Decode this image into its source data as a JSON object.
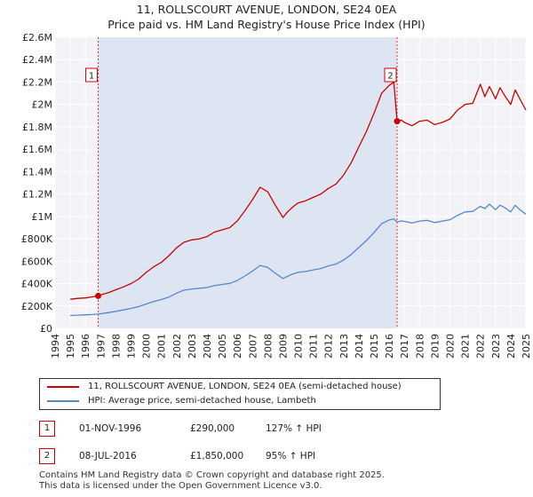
{
  "chart_data": {
    "type": "line",
    "title": "11, ROLLSCOURT AVENUE, LONDON, SE24 0EA",
    "subtitle": "Price paid vs. HM Land Registry's House Price Index (HPI)",
    "xlim": [
      1994,
      2025
    ],
    "ylim": [
      0,
      2600000
    ],
    "y_ticks": [
      0,
      200000,
      400000,
      600000,
      800000,
      1000000,
      1200000,
      1400000,
      1600000,
      1800000,
      2000000,
      2200000,
      2400000,
      2600000
    ],
    "y_tick_labels": [
      "£0",
      "£200K",
      "£400K",
      "£600K",
      "£800K",
      "£1M",
      "£1.2M",
      "£1.4M",
      "£1.6M",
      "£1.8M",
      "£2M",
      "£2.2M",
      "£2.4M",
      "£2.6M"
    ],
    "x_ticks": [
      1994,
      1995,
      1996,
      1997,
      1998,
      1999,
      2000,
      2001,
      2002,
      2003,
      2004,
      2005,
      2006,
      2007,
      2008,
      2009,
      2010,
      2011,
      2012,
      2013,
      2014,
      2015,
      2016,
      2017,
      2018,
      2019,
      2020,
      2021,
      2022,
      2023,
      2024,
      2025
    ],
    "x_tick_labels": [
      "1994",
      "1995",
      "1996",
      "1997",
      "1998",
      "1999",
      "2000",
      "2001",
      "2002",
      "2003",
      "2004",
      "2005",
      "2006",
      "2007",
      "2008",
      "2009",
      "2010",
      "2011",
      "2012",
      "2013",
      "2014",
      "2015",
      "2016",
      "2017",
      "2018",
      "2019",
      "2020",
      "2021",
      "2022",
      "2023",
      "2024",
      "2025"
    ],
    "ownership_shade": [
      1996.84,
      2016.52
    ],
    "series": [
      {
        "name": "11, ROLLSCOURT AVENUE, LONDON, SE24 0EA (semi-detached house)",
        "color": "#cc0000",
        "x": [
          1995.0,
          1995.5,
          1996.0,
          1996.5,
          1996.84,
          1997.0,
          1997.5,
          1998.0,
          1998.5,
          1999.0,
          1999.5,
          2000.0,
          2000.5,
          2001.0,
          2001.5,
          2002.0,
          2002.5,
          2003.0,
          2003.5,
          2004.0,
          2004.5,
          2005.0,
          2005.5,
          2006.0,
          2006.5,
          2007.0,
          2007.5,
          2008.0,
          2008.5,
          2009.0,
          2009.3,
          2009.7,
          2010.0,
          2010.5,
          2011.0,
          2011.5,
          2012.0,
          2012.5,
          2013.0,
          2013.5,
          2014.0,
          2014.5,
          2015.0,
          2015.5,
          2016.0,
          2016.3,
          2016.52,
          2016.8,
          2017.0,
          2017.5,
          2018.0,
          2018.5,
          2019.0,
          2019.5,
          2020.0,
          2020.5,
          2021.0,
          2021.5,
          2022.0,
          2022.3,
          2022.6,
          2023.0,
          2023.3,
          2023.6,
          2024.0,
          2024.3,
          2024.6,
          2025.0
        ],
        "values": [
          260000,
          268000,
          272000,
          282000,
          290000,
          300000,
          318000,
          345000,
          370000,
          400000,
          440000,
          500000,
          550000,
          590000,
          650000,
          720000,
          770000,
          790000,
          800000,
          820000,
          860000,
          880000,
          900000,
          960000,
          1050000,
          1150000,
          1260000,
          1220000,
          1100000,
          990000,
          1040000,
          1090000,
          1120000,
          1140000,
          1170000,
          1200000,
          1250000,
          1290000,
          1370000,
          1480000,
          1620000,
          1760000,
          1920000,
          2100000,
          2170000,
          2200000,
          1850000,
          1860000,
          1840000,
          1810000,
          1850000,
          1860000,
          1820000,
          1840000,
          1870000,
          1950000,
          2000000,
          2010000,
          2180000,
          2070000,
          2160000,
          2050000,
          2150000,
          2080000,
          2000000,
          2130000,
          2050000,
          1950000
        ]
      },
      {
        "name": "HPI: Average price, semi-detached house, Lambeth",
        "color": "#5588cc",
        "x": [
          1995.0,
          1995.5,
          1996.0,
          1996.5,
          1996.84,
          1997.0,
          1997.5,
          1998.0,
          1998.5,
          1999.0,
          1999.5,
          2000.0,
          2000.5,
          2001.0,
          2001.5,
          2002.0,
          2002.5,
          2003.0,
          2003.5,
          2004.0,
          2004.5,
          2005.0,
          2005.5,
          2006.0,
          2006.5,
          2007.0,
          2007.5,
          2008.0,
          2008.5,
          2009.0,
          2009.3,
          2009.7,
          2010.0,
          2010.5,
          2011.0,
          2011.5,
          2012.0,
          2012.5,
          2013.0,
          2013.5,
          2014.0,
          2014.5,
          2015.0,
          2015.5,
          2016.0,
          2016.3,
          2016.52,
          2016.8,
          2017.0,
          2017.5,
          2018.0,
          2018.5,
          2019.0,
          2019.5,
          2020.0,
          2020.5,
          2021.0,
          2021.5,
          2022.0,
          2022.3,
          2022.6,
          2023.0,
          2023.3,
          2023.6,
          2024.0,
          2024.3,
          2024.6,
          2025.0
        ],
        "values": [
          115000,
          118000,
          121000,
          124000,
          128000,
          131000,
          140000,
          152000,
          165000,
          178000,
          194000,
          218000,
          240000,
          258000,
          280000,
          315000,
          342000,
          352000,
          358000,
          365000,
          382000,
          392000,
          402000,
          428000,
          468000,
          512000,
          562000,
          545000,
          492000,
          445000,
          465000,
          488000,
          500000,
          508000,
          522000,
          535000,
          558000,
          575000,
          610000,
          660000,
          722000,
          785000,
          855000,
          935000,
          968000,
          978000,
          950000,
          960000,
          955000,
          942000,
          958000,
          965000,
          945000,
          958000,
          970000,
          1010000,
          1040000,
          1045000,
          1090000,
          1070000,
          1110000,
          1060000,
          1100000,
          1080000,
          1040000,
          1100000,
          1060000,
          1020000
        ]
      }
    ],
    "annotations": [
      {
        "label": "1",
        "x": 1996.84,
        "value": 290000
      },
      {
        "label": "2",
        "x": 2016.52,
        "value": 1850000
      }
    ]
  },
  "legend": {
    "property_label": "11, ROLLSCOURT AVENUE, LONDON, SE24 0EA (semi-detached house)",
    "hpi_label": "HPI: Average price, semi-detached house, Lambeth",
    "property_color": "#cc0000",
    "hpi_color": "#5588cc"
  },
  "sales": [
    {
      "num": "1",
      "date": "01-NOV-1996",
      "price": "£290,000",
      "hpi": "127% ↑ HPI"
    },
    {
      "num": "2",
      "date": "08-JUL-2016",
      "price": "£1,850,000",
      "hpi": "95% ↑ HPI"
    }
  ],
  "footer": {
    "line1": "Contains HM Land Registry data © Crown copyright and database right 2025.",
    "line2": "This data is licensed under the Open Government Licence v3.0."
  }
}
